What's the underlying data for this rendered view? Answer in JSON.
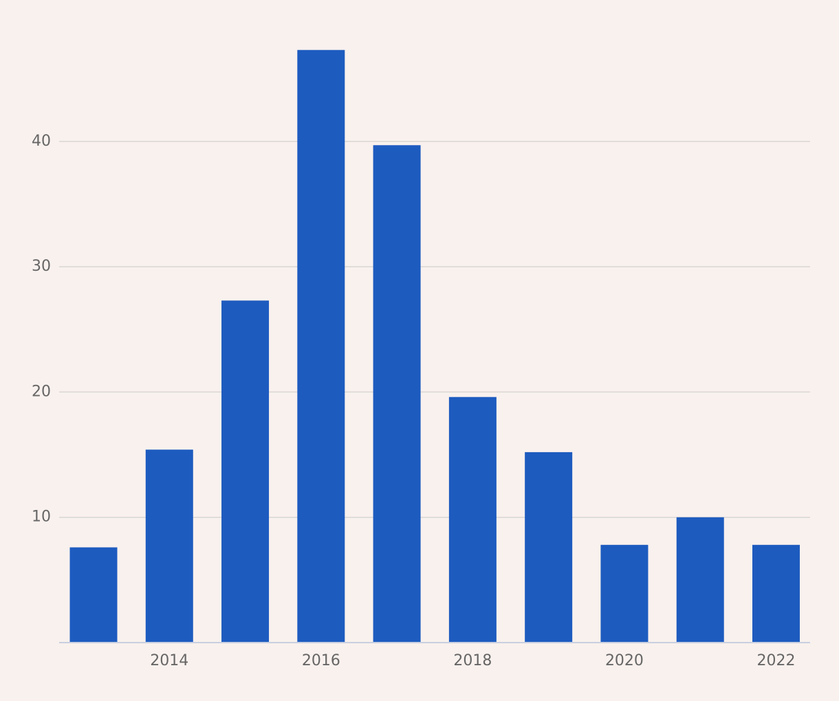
{
  "chart_data": {
    "type": "bar",
    "categories": [
      null,
      "2014",
      null,
      "2016",
      null,
      "2018",
      null,
      "2020",
      null,
      "2022"
    ],
    "values": [
      7.6,
      15.4,
      27.3,
      47.3,
      39.7,
      19.6,
      15.2,
      7.8,
      10.0,
      7.8
    ],
    "color": "#1d5bbf",
    "ylim": [
      0,
      50
    ],
    "yticks": [
      10,
      20,
      30,
      40
    ],
    "grid": true
  }
}
